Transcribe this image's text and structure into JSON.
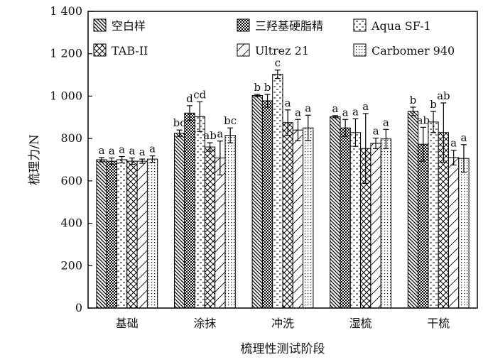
{
  "chart_data": {
    "type": "bar",
    "xlabel": "梳理性测试阶段",
    "ylabel": "梳理力/N",
    "ylim": [
      0,
      1400
    ],
    "yticks": [
      0,
      200,
      400,
      600,
      800,
      1000,
      1200,
      1400
    ],
    "ytick_labels": [
      "0",
      "200",
      "400",
      "600",
      "800",
      "1 000",
      "1 200",
      "1 400"
    ],
    "grid": false,
    "legend_position": "top, inside plot, 3 columns",
    "categories": [
      "基础",
      "涂抹",
      "冲洗",
      "湿梳",
      "干梳"
    ],
    "series": [
      {
        "name": "空白样",
        "pattern": "diag-back",
        "values": [
          700,
          825,
          1003,
          903,
          928
        ],
        "errors": [
          10,
          15,
          5,
          5,
          20
        ],
        "labels": [
          "a",
          "bc",
          "b",
          "a",
          "b"
        ]
      },
      {
        "name": "三羟基硬脂精",
        "pattern": "dots-dense",
        "values": [
          693,
          920,
          978,
          850,
          773
        ],
        "errors": [
          15,
          35,
          30,
          40,
          80
        ],
        "labels": [
          "a",
          "d",
          "b",
          "a",
          "ab"
        ]
      },
      {
        "name": "Aqua SF-1",
        "pattern": "dashes",
        "values": [
          700,
          903,
          1103,
          828,
          878
        ],
        "errors": [
          15,
          70,
          20,
          65,
          50
        ],
        "labels": [
          "a",
          "cd",
          "c",
          "a",
          "b"
        ]
      },
      {
        "name": "TAB-II",
        "pattern": "crosshatch",
        "values": [
          693,
          760,
          875,
          753,
          828
        ],
        "errors": [
          15,
          20,
          60,
          165,
          140
        ],
        "labels": [
          "a",
          "ab",
          "a",
          "a",
          "ab"
        ]
      },
      {
        "name": "Ultrez 21",
        "pattern": "diag-forward",
        "values": [
          693,
          708,
          840,
          777,
          710
        ],
        "errors": [
          10,
          80,
          50,
          25,
          35
        ],
        "labels": [
          "a",
          "a",
          "a",
          "a",
          "a"
        ]
      },
      {
        "name": "Carbomer 940",
        "pattern": "dots-sparse",
        "values": [
          703,
          815,
          850,
          798,
          706
        ],
        "errors": [
          15,
          35,
          60,
          45,
          65
        ],
        "labels": [
          "a",
          "bc",
          "a",
          "a",
          "a"
        ]
      }
    ]
  }
}
